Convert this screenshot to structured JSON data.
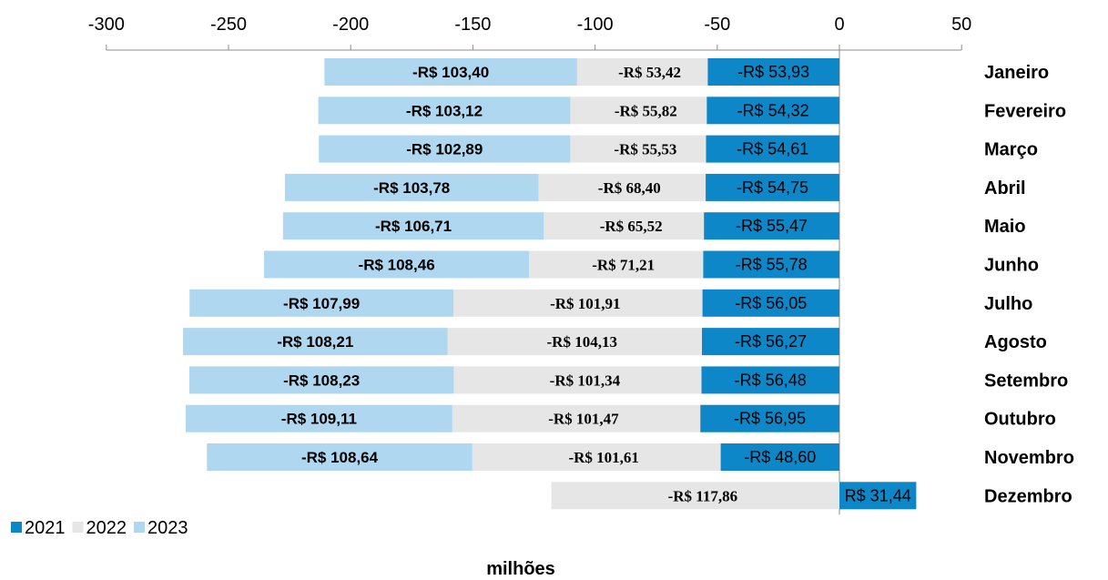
{
  "chart_data": {
    "type": "bar",
    "orientation": "horizontal",
    "stacked": true,
    "x_axis_position": "top",
    "xlim": [
      -300,
      50
    ],
    "xticks": [
      -300,
      -250,
      -200,
      -150,
      -100,
      -50,
      0,
      50
    ],
    "xlabel": "milhões",
    "legend_position": "bottom-left",
    "grid": false,
    "categories": [
      "Janeiro",
      "Fevereiro",
      "Março",
      "Abril",
      "Maio",
      "Junho",
      "Julho",
      "Agosto",
      "Setembro",
      "Outubro",
      "Novembro",
      "Dezembro"
    ],
    "series": [
      {
        "name": "2021",
        "color": "#0e87c8",
        "values": [
          -53.93,
          -54.32,
          -54.61,
          -54.75,
          -55.47,
          -55.78,
          -56.05,
          -56.27,
          -56.48,
          -56.95,
          -48.6,
          31.44
        ],
        "labels": [
          "-R$ 53,93",
          "-R$ 54,32",
          "-R$ 54,61",
          "-R$ 54,75",
          "-R$ 55,47",
          "-R$ 55,78",
          "-R$ 56,05",
          "-R$ 56,27",
          "-R$ 56,48",
          "-R$ 56,95",
          "-R$ 48,60",
          "R$ 31,44"
        ]
      },
      {
        "name": "2022",
        "color": "#e6e6e6",
        "values": [
          -53.42,
          -55.82,
          -55.53,
          -68.4,
          -65.52,
          -71.21,
          -101.91,
          -104.13,
          -101.34,
          -101.47,
          -101.61,
          -117.86
        ],
        "labels": [
          "-R$ 53,42",
          "-R$ 55,82",
          "-R$ 55,53",
          "-R$ 68,40",
          "-R$ 65,52",
          "-R$ 71,21",
          "-R$ 101,91",
          "-R$ 104,13",
          "-R$ 101,34",
          "-R$ 101,47",
          "-R$ 101,61",
          "-R$ 117,86"
        ]
      },
      {
        "name": "2023",
        "color": "#afd7f0",
        "values": [
          -103.4,
          -103.12,
          -102.89,
          -103.78,
          -106.71,
          -108.46,
          -107.99,
          -108.21,
          -108.23,
          -109.11,
          -108.64,
          null
        ],
        "labels": [
          "-R$ 103,40",
          "-R$ 103,12",
          "-R$ 102,89",
          "-R$ 103,78",
          "-R$ 106,71",
          "-R$ 108,46",
          "-R$ 107,99",
          "-R$ 108,21",
          "-R$ 108,23",
          "-R$ 109,11",
          "-R$ 108,64",
          ""
        ]
      }
    ]
  }
}
